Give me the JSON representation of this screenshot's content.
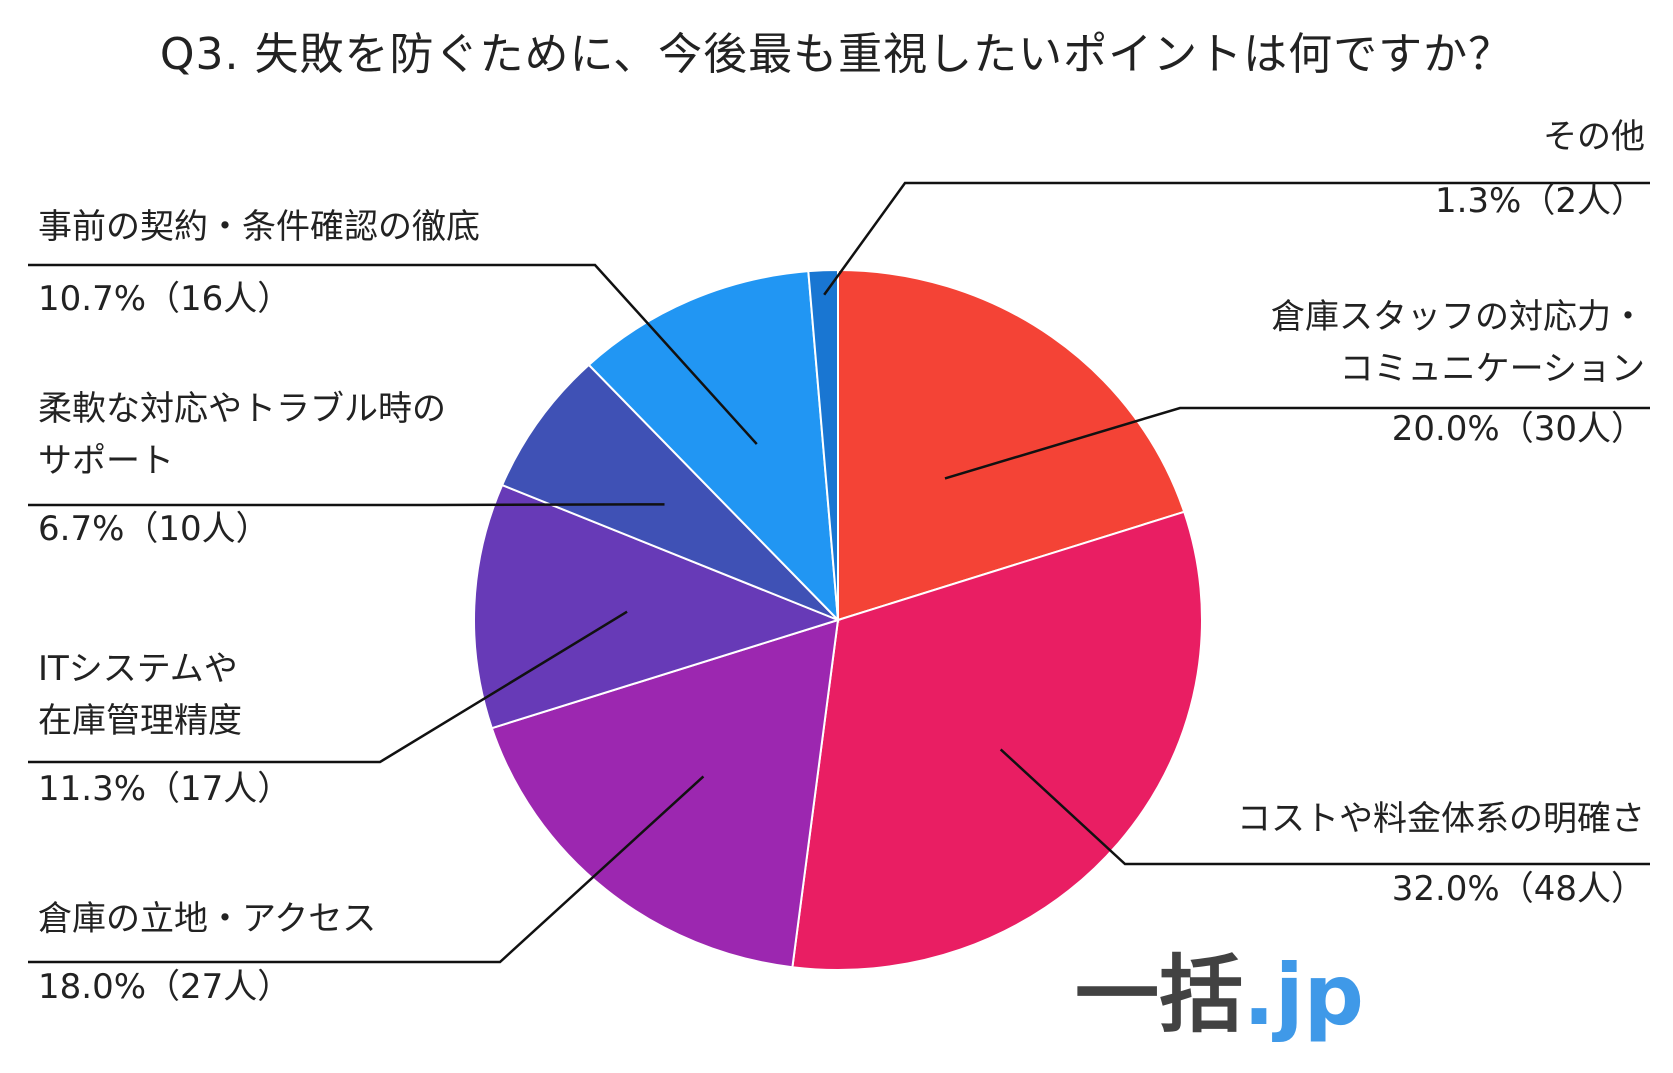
{
  "chart_data": {
    "type": "pie",
    "title": "Q3. 失敗を防ぐために、今後最も重視したいポイントは何ですか？",
    "slices": [
      {
        "label_lines": [
          "倉庫スタッフの対応力・",
          "コミュニケーション"
        ],
        "value_text": "20.0%（30人）",
        "percent": 20.0,
        "count": 30,
        "color": "#F44336"
      },
      {
        "label_lines": [
          "コストや料金体系の明確さ"
        ],
        "value_text": "32.0%（48人）",
        "percent": 32.0,
        "count": 48,
        "color": "#E91E63"
      },
      {
        "label_lines": [
          "倉庫の立地・アクセス"
        ],
        "value_text": "18.0%（27人）",
        "percent": 18.0,
        "count": 27,
        "color": "#9C27B0"
      },
      {
        "label_lines": [
          "ITシステムや",
          "在庫管理精度"
        ],
        "value_text": "11.3%（17人）",
        "percent": 11.3,
        "count": 17,
        "color": "#673AB7"
      },
      {
        "label_lines": [
          "柔軟な対応やトラブル時の",
          "サポート"
        ],
        "value_text": "6.7%（10人）",
        "percent": 6.7,
        "count": 10,
        "color": "#3F51B5"
      },
      {
        "label_lines": [
          "事前の契約・条件確認の徹底"
        ],
        "value_text": "10.7%（16人）",
        "percent": 10.7,
        "count": 16,
        "color": "#2196F3"
      },
      {
        "label_lines": [
          "その他"
        ],
        "value_text": "1.3%（2人）",
        "percent": 1.3,
        "count": 2,
        "color": "#1976D2"
      }
    ]
  },
  "logo": {
    "text_main": "一括",
    "text_dot": ".jp",
    "color_main": "#222222",
    "color_dot": "#1E88E5"
  }
}
